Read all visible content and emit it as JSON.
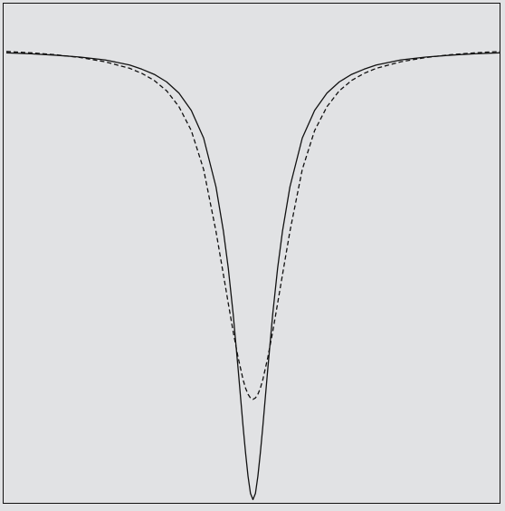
{
  "chart_data": {
    "type": "line",
    "title": "",
    "xlabel": "",
    "ylabel": "",
    "xlim": [
      -100,
      100
    ],
    "ylim": [
      0,
      1.1
    ],
    "grid": false,
    "legend": "none",
    "colors": {
      "background": "#e1e2e4",
      "frame": "#111111",
      "line": "#111111"
    },
    "series": [
      {
        "style": "solid",
        "x": [
          -100,
          -90,
          -80,
          -70,
          -60,
          -50,
          -45,
          -40,
          -35,
          -30,
          -25,
          -20,
          -15,
          -12,
          -10,
          -8,
          -6,
          -4,
          -3,
          -2,
          -1,
          0,
          1,
          2,
          3,
          4,
          6,
          8,
          10,
          12,
          15,
          20,
          25,
          30,
          35,
          40,
          45,
          50,
          60,
          70,
          80,
          90,
          100
        ],
        "y": [
          0.991,
          0.989,
          0.986,
          0.982,
          0.976,
          0.965,
          0.956,
          0.945,
          0.929,
          0.905,
          0.868,
          0.809,
          0.705,
          0.611,
          0.531,
          0.432,
          0.315,
          0.193,
          0.137,
          0.087,
          0.05,
          0.037,
          0.05,
          0.087,
          0.137,
          0.193,
          0.315,
          0.432,
          0.531,
          0.611,
          0.705,
          0.809,
          0.868,
          0.905,
          0.929,
          0.945,
          0.956,
          0.965,
          0.976,
          0.982,
          0.986,
          0.989,
          0.991
        ]
      },
      {
        "style": "dashed",
        "x": [
          -100,
          -90,
          -80,
          -70,
          -60,
          -50,
          -45,
          -40,
          -35,
          -30,
          -25,
          -20,
          -15,
          -12,
          -10,
          -8,
          -6,
          -4,
          -3,
          -2,
          -1,
          0,
          1,
          2,
          3,
          4,
          6,
          8,
          10,
          12,
          15,
          20,
          25,
          30,
          35,
          40,
          45,
          50,
          60,
          70,
          80,
          90,
          100
        ],
        "y": [
          0.994,
          0.991,
          0.987,
          0.981,
          0.972,
          0.958,
          0.947,
          0.932,
          0.91,
          0.876,
          0.825,
          0.742,
          0.61,
          0.518,
          0.456,
          0.395,
          0.34,
          0.293,
          0.275,
          0.262,
          0.254,
          0.251,
          0.254,
          0.262,
          0.275,
          0.293,
          0.34,
          0.395,
          0.456,
          0.518,
          0.61,
          0.742,
          0.825,
          0.876,
          0.91,
          0.932,
          0.947,
          0.958,
          0.972,
          0.981,
          0.987,
          0.991,
          0.994
        ]
      }
    ]
  }
}
